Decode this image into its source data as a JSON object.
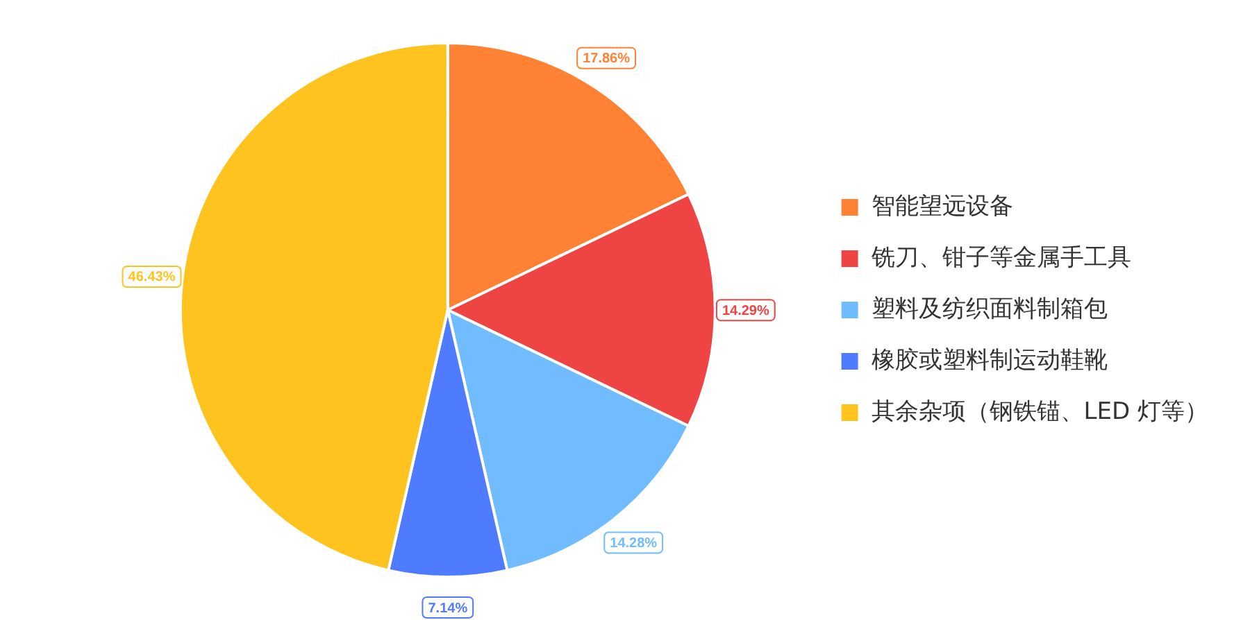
{
  "chart_data": {
    "type": "pie",
    "categories": [
      "智能望远设备",
      "铣刀、钳子等金属手工具",
      "塑料及纺织面料制箱包",
      "橡胶或塑料制运动鞋靴",
      "其余杂项（钢铁锚、LED 灯等）"
    ],
    "values": [
      17.86,
      14.29,
      14.28,
      7.14,
      46.43
    ],
    "colors": [
      "#ff8133",
      "#ef4444",
      "#70bcff",
      "#4f7cff",
      "#ffc31f"
    ],
    "value_labels": [
      "17.86%",
      "14.29%",
      "14.28%",
      "7.14%",
      "46.43%"
    ],
    "legend": "right"
  }
}
